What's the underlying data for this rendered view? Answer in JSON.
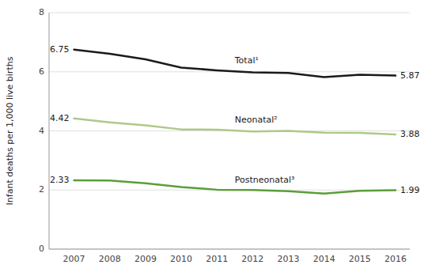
{
  "chart_data": {
    "type": "line",
    "x": [
      2007,
      2008,
      2009,
      2010,
      2011,
      2012,
      2013,
      2014,
      2015,
      2016
    ],
    "xlim": [
      2006.3,
      2016.4
    ],
    "xticks": [
      2007,
      2008,
      2009,
      2010,
      2011,
      2012,
      2013,
      2014,
      2015,
      2016
    ],
    "ylabel": "Infant deaths per 1,000 live births",
    "ylim": [
      0,
      8
    ],
    "yticks": [
      0,
      2,
      4,
      6,
      8
    ],
    "grid": true,
    "series": [
      {
        "name": "Total¹",
        "color": "#1a1a1a",
        "values": [
          6.75,
          6.61,
          6.42,
          6.14,
          6.05,
          5.98,
          5.96,
          5.82,
          5.9,
          5.87
        ],
        "value_labels": [
          "6.75",
          null,
          null,
          null,
          null,
          null,
          null,
          null,
          null,
          "5.87"
        ]
      },
      {
        "name": "Neonatal²",
        "color": "#adc98a",
        "values": [
          4.42,
          4.29,
          4.19,
          4.05,
          4.04,
          3.98,
          4.0,
          3.94,
          3.93,
          3.88
        ],
        "value_labels": [
          "4.42",
          null,
          null,
          null,
          null,
          null,
          null,
          null,
          null,
          "3.88"
        ]
      },
      {
        "name": "Postneonatal³",
        "color": "#5a9e3a",
        "values": [
          2.33,
          2.32,
          2.23,
          2.1,
          2.01,
          2.0,
          1.96,
          1.88,
          1.97,
          1.99
        ],
        "value_labels": [
          "2.33",
          null,
          null,
          null,
          null,
          null,
          null,
          null,
          null,
          "1.99"
        ]
      }
    ]
  }
}
